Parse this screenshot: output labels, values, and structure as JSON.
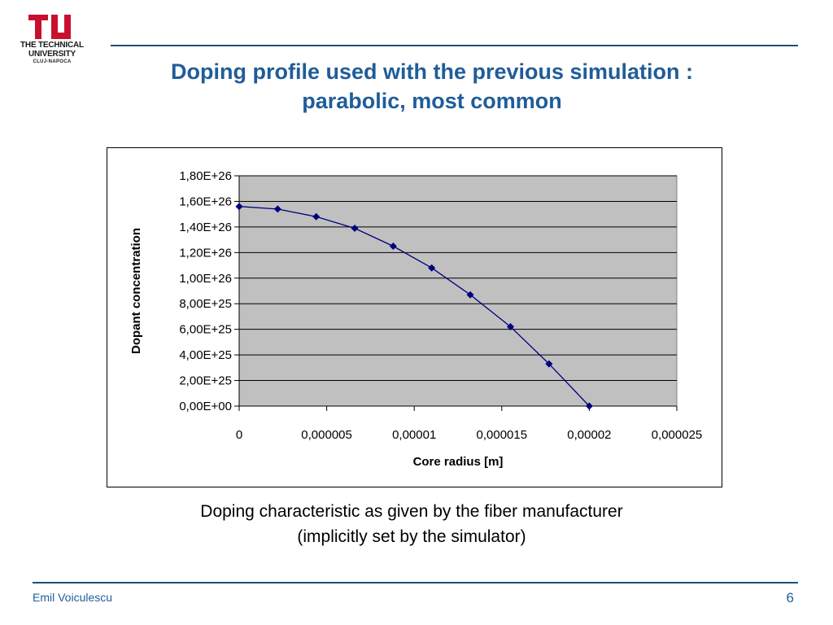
{
  "logo": {
    "line1": "THE TECHNICAL",
    "line2": "UNIVERSITY",
    "line3": "CLUJ-NAPOCA",
    "color": "#c8102e"
  },
  "slide": {
    "title_line1": "Doping profile used with the previous simulation :",
    "title_line2": "parabolic, most common",
    "caption_line1": "Doping characteristic as given by the fiber manufacturer",
    "caption_line2": "(implicitly set by the simulator)",
    "author": "Emil Voiculescu",
    "page_number": "6"
  },
  "colors": {
    "accent": "#1f5d99",
    "rule": "#1f4e79",
    "plot_area": "#c0c0c0",
    "series": "#000080"
  },
  "chart_data": {
    "type": "line",
    "title": "",
    "xlabel": "Core radius [m]",
    "ylabel": "Dopant concentration",
    "xlim": [
      0,
      2.5e-05
    ],
    "ylim": [
      0,
      1.8e+26
    ],
    "x_ticks": [
      0,
      5e-06,
      1e-05,
      1.5e-05,
      2e-05,
      2.5e-05
    ],
    "x_tick_labels": [
      "0",
      "0,000005",
      "0,00001",
      "0,000015",
      "0,00002",
      "0,000025"
    ],
    "y_ticks": [
      0,
      2e+25,
      4e+25,
      6e+25,
      8e+25,
      1e+26,
      1.2e+26,
      1.4e+26,
      1.6e+26,
      1.8e+26
    ],
    "y_tick_labels": [
      "0,00E+00",
      "2,00E+25",
      "4,00E+25",
      "6,00E+25",
      "8,00E+25",
      "1,00E+26",
      "1,20E+26",
      "1,40E+26",
      "1,60E+26",
      "1,80E+26"
    ],
    "grid": "horizontal",
    "legend": "none",
    "marker": "diamond",
    "series": [
      {
        "x": [
          0,
          2.2e-06,
          4.4e-06,
          6.6e-06,
          8.8e-06,
          1.1e-05,
          1.32e-05,
          1.55e-05,
          1.77e-05,
          2e-05
        ],
        "y": [
          1.56e+26,
          1.54e+26,
          1.48e+26,
          1.39e+26,
          1.25e+26,
          1.08e+26,
          8.7e+25,
          6.2e+25,
          3.3e+25,
          0
        ]
      }
    ]
  }
}
